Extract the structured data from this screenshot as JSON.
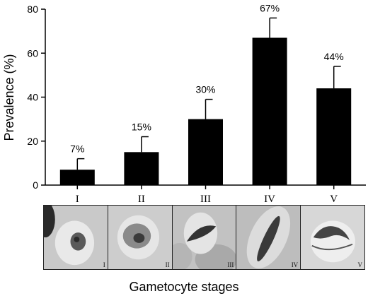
{
  "chart_data": {
    "type": "bar",
    "title": "",
    "xlabel": "Gametocyte stages",
    "ylabel": "Prevalence (%)",
    "categories": [
      "I",
      "II",
      "III",
      "IV",
      "V"
    ],
    "values": [
      7,
      15,
      30,
      67,
      44
    ],
    "error_upper": [
      12,
      22,
      39,
      76,
      54
    ],
    "data_labels": [
      "7%",
      "15%",
      "30%",
      "67%",
      "44%"
    ],
    "ylim": [
      0,
      80
    ],
    "yticks": [
      0,
      20,
      40,
      60,
      80
    ],
    "grid": false,
    "bar_color": "#000000"
  },
  "images": {
    "panel_labels": [
      "I",
      "II",
      "III",
      "IV",
      "V"
    ]
  }
}
